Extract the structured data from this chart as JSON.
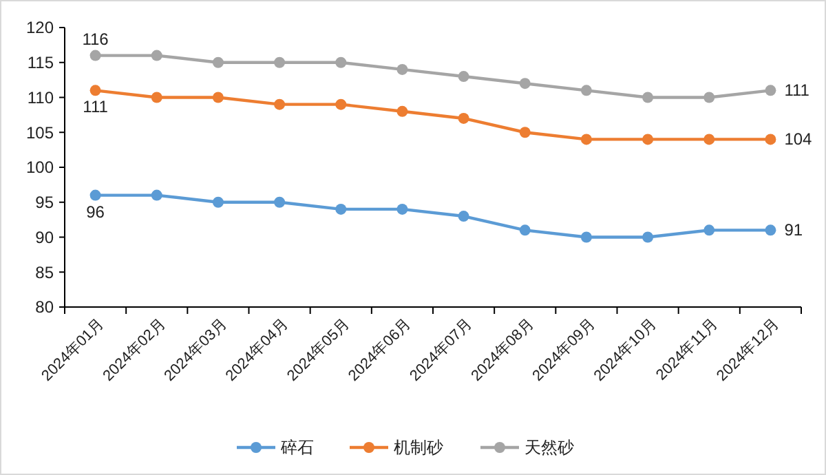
{
  "chart_data": {
    "type": "line",
    "categories": [
      "2024年01月",
      "2024年02月",
      "2024年03月",
      "2024年04月",
      "2024年05月",
      "2024年06月",
      "2024年07月",
      "2024年08月",
      "2024年09月",
      "2024年10月",
      "2024年11月",
      "2024年12月"
    ],
    "series": [
      {
        "name": "碎石",
        "color": "#5b9bd5",
        "values": [
          96,
          96,
          95,
          95,
          94,
          94,
          93,
          91,
          90,
          90,
          91,
          91
        ],
        "value_labels": [
          "96",
          null,
          null,
          null,
          null,
          null,
          null,
          null,
          null,
          null,
          null,
          "91"
        ]
      },
      {
        "name": "机制砂",
        "color": "#ed7d31",
        "values": [
          111,
          110,
          110,
          109,
          109,
          108,
          107,
          105,
          104,
          104,
          104,
          104
        ],
        "value_labels": [
          "111",
          null,
          null,
          null,
          null,
          null,
          null,
          null,
          null,
          null,
          null,
          "104"
        ]
      },
      {
        "name": "天然砂",
        "color": "#a5a5a5",
        "values": [
          116,
          116,
          115,
          115,
          115,
          114,
          113,
          112,
          111,
          110,
          110,
          111
        ],
        "value_labels": [
          "116",
          null,
          null,
          null,
          null,
          null,
          null,
          null,
          null,
          null,
          null,
          "111"
        ]
      }
    ],
    "ylim": [
      80,
      120
    ],
    "yticks": [
      80,
      85,
      90,
      95,
      100,
      105,
      110,
      115,
      120
    ],
    "grid": false,
    "legend": "bottom",
    "marker": "circle",
    "line_style": "solid"
  }
}
